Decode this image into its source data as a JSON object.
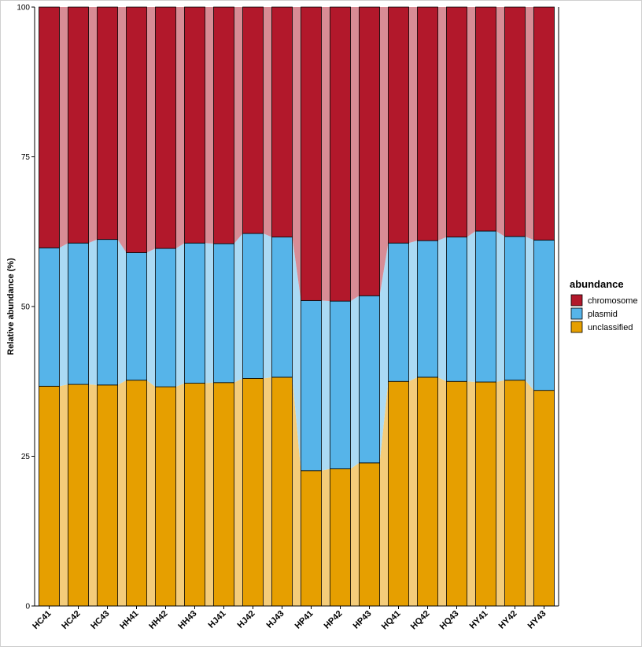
{
  "chart_data": {
    "type": "bar",
    "stacked": true,
    "normalized": true,
    "title": "",
    "xlabel": "",
    "ylabel": "Relative abundance (%)",
    "ylim": [
      0,
      100
    ],
    "yticks": [
      0,
      25,
      50,
      75,
      100
    ],
    "categories": [
      "HC41",
      "HC42",
      "HC43",
      "HH41",
      "HH42",
      "HH43",
      "HJ41",
      "HJ42",
      "HJ43",
      "HP41",
      "HP42",
      "HP43",
      "HQ41",
      "HQ42",
      "HQ43",
      "HY41",
      "HY42",
      "HY43"
    ],
    "series": [
      {
        "name": "unclassified",
        "color": "#E69F00",
        "light_color": "#F4CC7A",
        "values": [
          36.7,
          37.0,
          36.9,
          37.7,
          36.6,
          37.2,
          37.3,
          38.0,
          38.2,
          22.6,
          22.9,
          23.9,
          37.5,
          38.2,
          37.5,
          37.4,
          37.7,
          36.0
        ]
      },
      {
        "name": "plasmid",
        "color": "#56B4E9",
        "light_color": "#ABDAF4",
        "values": [
          23.1,
          23.6,
          24.3,
          21.3,
          23.1,
          23.4,
          23.2,
          24.2,
          23.4,
          28.4,
          28.0,
          27.9,
          23.1,
          22.8,
          24.1,
          25.2,
          24.0,
          25.1
        ]
      },
      {
        "name": "chromosome",
        "color": "#B2182B",
        "light_color": "#D88C95",
        "values": [
          40.2,
          39.4,
          38.8,
          41.0,
          40.3,
          39.4,
          39.5,
          37.8,
          38.4,
          49.0,
          49.1,
          48.2,
          39.4,
          39.0,
          38.4,
          37.4,
          38.3,
          38.9
        ]
      }
    ],
    "legend": {
      "title": "abundance",
      "position": "right",
      "entries": [
        "chromosome",
        "plasmid",
        "unclassified"
      ]
    },
    "flow_ribbons": true
  }
}
